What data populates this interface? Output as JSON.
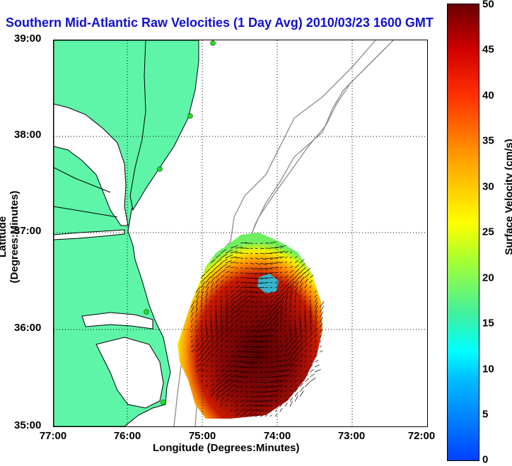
{
  "title": "Southern Mid-Atlantic Raw Velocities (1 Day Avg) 2010/03/23 1600 GMT",
  "xlabel": "Longitude (Degrees:Minutes)",
  "ylabel": "Latitude (Degrees:Minutes)",
  "lat_ticks": [
    "39:00",
    "38:00",
    "37:00",
    "36:00",
    "35:00"
  ],
  "lon_ticks": [
    "77:00",
    "76:00",
    "75:00",
    "74:00",
    "73:00",
    "72:00"
  ],
  "colorbar": {
    "label": "Surface Velocity (cm/s)",
    "ticks": [
      "50",
      "45",
      "40",
      "35",
      "30",
      "25",
      "20",
      "15",
      "10",
      "5",
      "0"
    ]
  },
  "colors": {
    "land": "#5ef5a8",
    "coast": "#000000",
    "bathymetry": "#8c8c8c",
    "grid": "#000000",
    "station": "#22dd22",
    "title": "#1010d0"
  }
}
